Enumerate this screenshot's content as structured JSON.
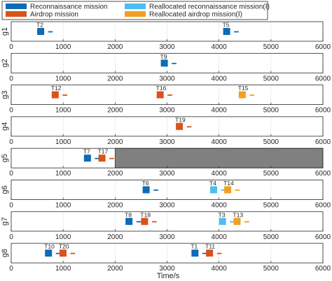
{
  "chart_data": {
    "type": "gantt",
    "xlabel": "Time/s",
    "xlim": [
      0,
      6000
    ],
    "xticks": [
      0,
      1000,
      2000,
      3000,
      4000,
      5000,
      6000
    ],
    "task_duration": 150,
    "tail_offset": 60,
    "tail_length": 90,
    "legend": {
      "placement": "top",
      "entries": [
        {
          "key": "recon",
          "label": "Reconnaissance mission",
          "color": "#0e6bb5"
        },
        {
          "key": "airdrop",
          "label": "Airdrop mission",
          "color": "#d95319"
        },
        {
          "key": "realloc_recon",
          "label": "Reallocated reconnaissance mission(Ⅰ)",
          "color": "#4dbeee"
        },
        {
          "key": "realloc_airdrop",
          "label": "Reallocated airdrop mission(Ⅰ)",
          "color": "#f0a020"
        }
      ]
    },
    "unavailable_color": "#808080",
    "rows": [
      {
        "label": "g1",
        "tasks": [
          {
            "name": "T2",
            "type": "recon",
            "start": 500
          },
          {
            "name": "T5",
            "type": "recon",
            "start": 4080
          }
        ]
      },
      {
        "label": "g2",
        "tasks": [
          {
            "name": "T9",
            "type": "recon",
            "start": 2880
          }
        ]
      },
      {
        "label": "g3",
        "tasks": [
          {
            "name": "T12",
            "type": "airdrop",
            "start": 780
          },
          {
            "name": "T16",
            "type": "airdrop",
            "start": 2800
          },
          {
            "name": "T15",
            "type": "realloc_airdrop",
            "start": 4380
          }
        ]
      },
      {
        "label": "g4",
        "tasks": [
          {
            "name": "T19",
            "type": "airdrop",
            "start": 3170
          }
        ]
      },
      {
        "label": "g5",
        "tasks": [
          {
            "name": "T7",
            "type": "recon",
            "start": 1400
          },
          {
            "name": "T17",
            "type": "airdrop",
            "start": 1680
          }
        ],
        "unavailable": [
          2000,
          6000
        ]
      },
      {
        "label": "g6",
        "tasks": [
          {
            "name": "T6",
            "type": "recon",
            "start": 2530
          },
          {
            "name": "T4",
            "type": "realloc_recon",
            "start": 3830
          },
          {
            "name": "T14",
            "type": "realloc_airdrop",
            "start": 4100
          }
        ]
      },
      {
        "label": "g7",
        "tasks": [
          {
            "name": "T8",
            "type": "recon",
            "start": 2200
          },
          {
            "name": "T18",
            "type": "airdrop",
            "start": 2500
          },
          {
            "name": "T3",
            "type": "realloc_recon",
            "start": 4000
          },
          {
            "name": "T13",
            "type": "realloc_airdrop",
            "start": 4280
          }
        ]
      },
      {
        "label": "g8",
        "tasks": [
          {
            "name": "T10",
            "type": "recon",
            "start": 650
          },
          {
            "name": "T20",
            "type": "airdrop",
            "start": 930
          },
          {
            "name": "T1",
            "type": "recon",
            "start": 3470
          },
          {
            "name": "T11",
            "type": "airdrop",
            "start": 3750
          }
        ]
      }
    ]
  }
}
